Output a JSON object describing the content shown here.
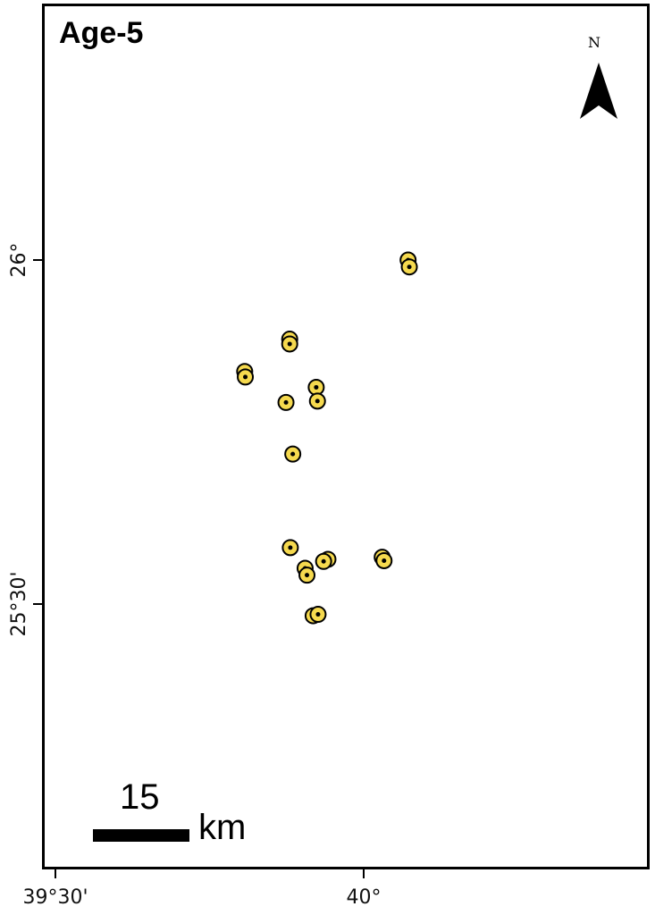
{
  "map": {
    "title": "Age-5",
    "north_arrow": {
      "label": "N",
      "icon": "north-arrow-icon"
    },
    "scale_bar": {
      "value": "15",
      "unit": "km"
    },
    "axes": {
      "x_ticks": [
        {
          "label": "39°30'",
          "lon": 39.5
        },
        {
          "label": "40°",
          "lon": 40.0
        }
      ],
      "y_ticks": [
        {
          "label": "26°",
          "lat": 26.0
        },
        {
          "label": "25°30'",
          "lat": 25.5
        }
      ]
    },
    "marker_style": {
      "fill": "#f5d94e",
      "stroke": "#000000",
      "dot": "#000000"
    },
    "points": [
      {
        "lon": 40.072,
        "lat": 26.0
      },
      {
        "lon": 40.074,
        "lat": 25.99
      },
      {
        "lon": 39.88,
        "lat": 25.885
      },
      {
        "lon": 39.88,
        "lat": 25.878
      },
      {
        "lon": 39.807,
        "lat": 25.838
      },
      {
        "lon": 39.808,
        "lat": 25.83
      },
      {
        "lon": 39.923,
        "lat": 25.815
      },
      {
        "lon": 39.925,
        "lat": 25.795
      },
      {
        "lon": 39.874,
        "lat": 25.793
      },
      {
        "lon": 39.885,
        "lat": 25.718
      },
      {
        "lon": 39.881,
        "lat": 25.582
      },
      {
        "lon": 39.942,
        "lat": 25.565
      },
      {
        "lon": 39.935,
        "lat": 25.562
      },
      {
        "lon": 40.03,
        "lat": 25.568
      },
      {
        "lon": 40.033,
        "lat": 25.563
      },
      {
        "lon": 39.905,
        "lat": 25.552
      },
      {
        "lon": 39.908,
        "lat": 25.542
      },
      {
        "lon": 39.918,
        "lat": 25.483
      },
      {
        "lon": 39.926,
        "lat": 25.485
      }
    ]
  }
}
